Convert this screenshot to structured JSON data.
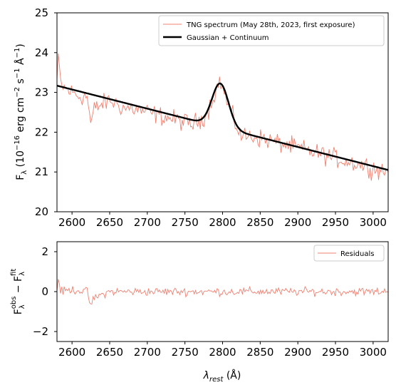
{
  "chart_data": [
    {
      "type": "line",
      "panel": "top",
      "xlabel": "",
      "ylabel": "F_λ (10^-16 erg cm^-2 s^-1 Å^-1)",
      "ylabel_parts": {
        "f": "F",
        "lambda": "λ",
        "open": " (10",
        "exp16": "−16",
        "erg": " erg cm",
        "exp2": "−2",
        "s": " s",
        "exp1": "−1",
        "ang": " Å",
        "exp1b": "−1",
        "close": ")"
      },
      "xlim": [
        2580,
        3020
      ],
      "ylim": [
        20,
        25
      ],
      "xticks": [
        2600,
        2650,
        2700,
        2750,
        2800,
        2850,
        2900,
        2950,
        3000
      ],
      "yticks": [
        20,
        21,
        22,
        23,
        24,
        25
      ],
      "grid": false,
      "legend_position": "top-right",
      "series": [
        {
          "name": "TNG spectrum (May 28th, 2023, first exposure)",
          "color": "#f08070",
          "style": "thin",
          "noise_amplitude": 0.35,
          "anchors": {
            "x": [
              2580,
              2582,
              2585,
              2590,
              2600,
              2610,
              2620,
              2625,
              2630,
              2640,
              2650,
              2660,
              2670,
              2680,
              2700,
              2720,
              2740,
              2760,
              2770,
              2780,
              2790,
              2797,
              2805,
              2815,
              2825,
              2840,
              2860,
              2880,
              2900,
              2920,
              2940,
              2960,
              2980,
              3000,
              3020
            ],
            "y": [
              23.3,
              23.9,
              23.2,
              23.1,
              23.0,
              22.9,
              22.9,
              22.2,
              22.6,
              22.7,
              22.8,
              22.7,
              22.6,
              22.6,
              22.5,
              22.4,
              22.3,
              22.2,
              22.3,
              22.5,
              23.0,
              23.3,
              22.8,
              22.3,
              21.9,
              21.9,
              21.8,
              21.7,
              21.6,
              21.5,
              21.4,
              21.3,
              21.2,
              21.1,
              21.0
            ]
          }
        },
        {
          "name": "Gaussian + Continuum",
          "color": "#000000",
          "style": "thick",
          "model": {
            "cont_at_2580": 23.17,
            "cont_at_3020": 21.05,
            "break_x": 2775,
            "gauss_amp": 1.1,
            "gauss_center": 2797,
            "gauss_sigma": 11
          }
        }
      ]
    },
    {
      "type": "line",
      "panel": "bottom",
      "xlabel": "λ_rest (Å)",
      "xlabel_parts": {
        "lambda": "λ",
        "rest": "rest",
        "unit": " (Å)"
      },
      "ylabel": "F_λ^obs − F_λ^fit",
      "ylabel_parts": {
        "f1": "F",
        "lambda": "λ",
        "obs": "obs",
        "minus": " − F",
        "fit": "fit"
      },
      "xlim": [
        2580,
        3020
      ],
      "ylim": [
        -2.5,
        2.5
      ],
      "xticks": [
        2600,
        2650,
        2700,
        2750,
        2800,
        2850,
        2900,
        2950,
        3000
      ],
      "yticks": [
        -2,
        0,
        2
      ],
      "grid": false,
      "legend_position": "top-right",
      "series": [
        {
          "name": "Residuals",
          "color": "#f08070",
          "style": "thin",
          "noise_amplitude": 0.3,
          "anchors": {
            "x": [
              2580,
              2582,
              2585,
              2600,
              2620,
              2625,
              2630,
              2650,
              2700,
              2750,
              2800,
              2850,
              2900,
              2950,
              3000,
              3020
            ],
            "y": [
              0.1,
              0.75,
              0.0,
              0.1,
              0.0,
              -0.7,
              -0.3,
              0.0,
              0.0,
              0.0,
              0.0,
              0.0,
              0.0,
              0.0,
              0.0,
              0.0
            ]
          }
        }
      ]
    }
  ]
}
